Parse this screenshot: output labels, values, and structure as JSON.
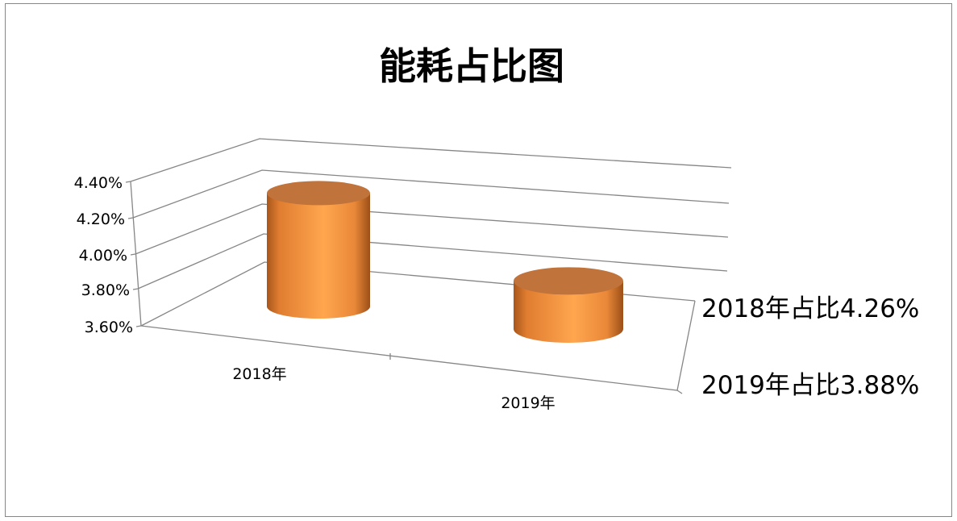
{
  "chart_data": {
    "type": "bar",
    "subtype": "3d-cylinder",
    "title": "能耗占比图",
    "categories": [
      "2018年",
      "2019年"
    ],
    "values": [
      4.26,
      3.88
    ],
    "value_unit": "%",
    "ylim": [
      3.6,
      4.4
    ],
    "yticks": [
      "3.60%",
      "3.80%",
      "4.00%",
      "4.20%",
      "4.40%"
    ],
    "grid": true,
    "legend": "none",
    "annotations": [
      "2018年占比4.26%",
      "2019年占比3.88%"
    ],
    "colors": {
      "bar": "#f79646",
      "bar_top": "#c0733a",
      "grid": "#868686",
      "border": "#868686"
    }
  }
}
